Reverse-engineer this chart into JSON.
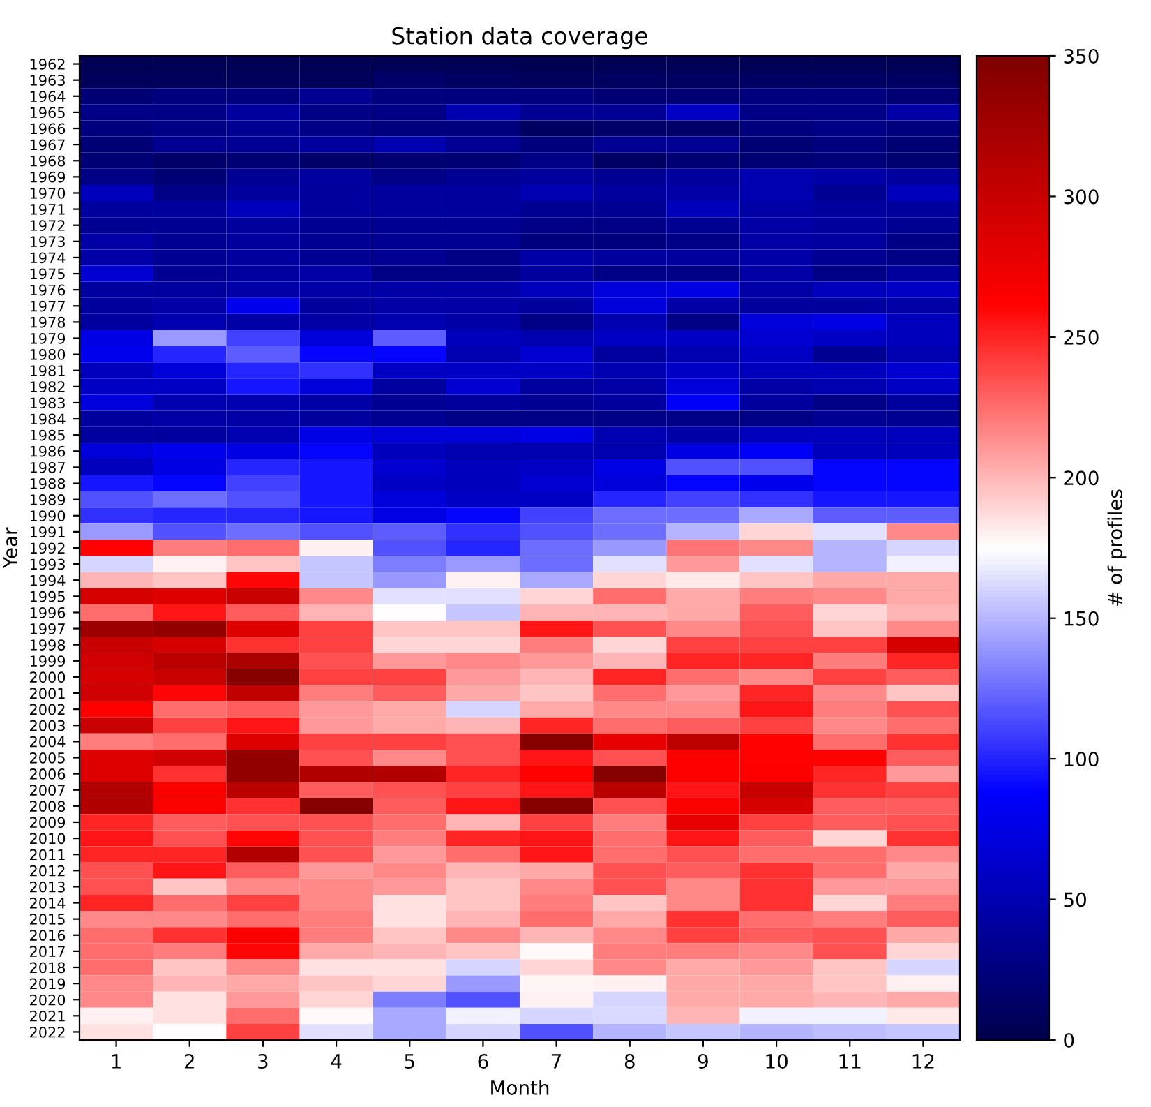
{
  "chart_data": {
    "type": "heatmap",
    "title": "Station data coverage",
    "xlabel": "Month",
    "ylabel": "Year",
    "clabel": "# of profiles",
    "categories": [
      "1",
      "2",
      "3",
      "4",
      "5",
      "6",
      "7",
      "8",
      "9",
      "10",
      "11",
      "12"
    ],
    "y_categories": [
      "1962",
      "1963",
      "1964",
      "1965",
      "1966",
      "1967",
      "1968",
      "1969",
      "1970",
      "1971",
      "1972",
      "1973",
      "1974",
      "1975",
      "1976",
      "1977",
      "1978",
      "1979",
      "1980",
      "1981",
      "1982",
      "1983",
      "1984",
      "1985",
      "1986",
      "1987",
      "1988",
      "1989",
      "1990",
      "1991",
      "1992",
      "1993",
      "1994",
      "1995",
      "1996",
      "1997",
      "1998",
      "1999",
      "2000",
      "2001",
      "2002",
      "2003",
      "2004",
      "2005",
      "2006",
      "2007",
      "2008",
      "2009",
      "2010",
      "2011",
      "2012",
      "2013",
      "2014",
      "2015",
      "2016",
      "2017",
      "2018",
      "2019",
      "2020",
      "2021",
      "2022"
    ],
    "cells": [
      [
        5,
        5,
        5,
        5,
        5,
        5,
        3,
        5,
        5,
        5,
        5,
        5
      ],
      [
        8,
        8,
        8,
        8,
        15,
        10,
        8,
        10,
        10,
        12,
        12,
        12
      ],
      [
        20,
        25,
        25,
        35,
        25,
        25,
        25,
        20,
        20,
        25,
        25,
        20
      ],
      [
        30,
        30,
        40,
        30,
        30,
        50,
        35,
        35,
        60,
        30,
        30,
        45
      ],
      [
        25,
        30,
        35,
        30,
        25,
        25,
        12,
        15,
        15,
        25,
        30,
        25
      ],
      [
        20,
        35,
        35,
        40,
        50,
        35,
        25,
        35,
        35,
        20,
        25,
        20
      ],
      [
        20,
        15,
        20,
        15,
        18,
        20,
        30,
        12,
        20,
        20,
        22,
        18
      ],
      [
        30,
        20,
        35,
        40,
        30,
        35,
        40,
        35,
        40,
        50,
        45,
        40
      ],
      [
        55,
        30,
        40,
        40,
        40,
        40,
        50,
        40,
        45,
        50,
        35,
        55
      ],
      [
        40,
        40,
        55,
        40,
        40,
        40,
        35,
        35,
        55,
        45,
        40,
        40
      ],
      [
        35,
        35,
        40,
        35,
        35,
        35,
        30,
        30,
        35,
        45,
        40,
        35
      ],
      [
        45,
        35,
        40,
        35,
        35,
        35,
        25,
        25,
        30,
        45,
        40,
        30
      ],
      [
        45,
        35,
        40,
        35,
        35,
        30,
        45,
        40,
        40,
        45,
        35,
        30
      ],
      [
        65,
        35,
        40,
        45,
        30,
        30,
        40,
        30,
        30,
        45,
        30,
        40
      ],
      [
        40,
        40,
        45,
        45,
        45,
        45,
        55,
        70,
        75,
        45,
        55,
        60
      ],
      [
        40,
        45,
        80,
        40,
        45,
        45,
        40,
        70,
        45,
        40,
        40,
        45
      ],
      [
        40,
        50,
        45,
        45,
        50,
        45,
        30,
        50,
        30,
        70,
        75,
        55
      ],
      [
        75,
        140,
        110,
        70,
        120,
        55,
        50,
        60,
        60,
        65,
        60,
        55
      ],
      [
        80,
        100,
        120,
        90,
        90,
        50,
        65,
        40,
        50,
        60,
        35,
        50
      ],
      [
        55,
        70,
        100,
        105,
        60,
        60,
        60,
        50,
        60,
        55,
        55,
        65
      ],
      [
        60,
        60,
        95,
        70,
        40,
        65,
        40,
        45,
        70,
        45,
        50,
        60
      ],
      [
        70,
        50,
        50,
        45,
        35,
        40,
        35,
        40,
        85,
        40,
        30,
        40
      ],
      [
        40,
        45,
        45,
        40,
        35,
        30,
        30,
        30,
        30,
        30,
        35,
        35
      ],
      [
        40,
        40,
        50,
        75,
        70,
        70,
        75,
        50,
        45,
        55,
        55,
        55
      ],
      [
        70,
        80,
        75,
        90,
        55,
        50,
        50,
        50,
        75,
        85,
        55,
        55
      ],
      [
        55,
        75,
        100,
        95,
        65,
        55,
        60,
        75,
        115,
        115,
        90,
        90
      ],
      [
        95,
        90,
        110,
        95,
        60,
        55,
        65,
        70,
        90,
        80,
        90,
        90
      ],
      [
        115,
        125,
        115,
        95,
        70,
        60,
        60,
        100,
        110,
        105,
        95,
        95
      ],
      [
        105,
        100,
        100,
        95,
        75,
        90,
        110,
        125,
        125,
        145,
        120,
        120
      ],
      [
        140,
        115,
        125,
        115,
        120,
        105,
        115,
        125,
        150,
        190,
        165,
        215
      ],
      [
        262,
        220,
        225,
        180,
        115,
        100,
        125,
        140,
        222,
        215,
        150,
        160
      ],
      [
        160,
        180,
        195,
        155,
        130,
        140,
        125,
        165,
        210,
        165,
        150,
        170
      ],
      [
        200,
        195,
        260,
        155,
        140,
        180,
        145,
        190,
        182,
        195,
        205,
        205
      ],
      [
        290,
        285,
        300,
        215,
        165,
        165,
        190,
        225,
        205,
        220,
        215,
        205
      ],
      [
        225,
        255,
        230,
        200,
        175,
        155,
        200,
        200,
        205,
        230,
        190,
        200
      ],
      [
        330,
        335,
        285,
        240,
        195,
        195,
        255,
        235,
        215,
        235,
        195,
        215
      ],
      [
        300,
        290,
        245,
        240,
        190,
        190,
        220,
        190,
        240,
        240,
        240,
        290
      ],
      [
        295,
        310,
        320,
        235,
        210,
        215,
        210,
        200,
        250,
        250,
        220,
        250
      ],
      [
        290,
        300,
        345,
        240,
        240,
        210,
        200,
        250,
        225,
        215,
        240,
        230
      ],
      [
        295,
        260,
        305,
        220,
        230,
        205,
        195,
        225,
        210,
        250,
        215,
        195
      ],
      [
        265,
        225,
        230,
        210,
        205,
        160,
        205,
        215,
        215,
        255,
        220,
        235
      ],
      [
        300,
        240,
        255,
        210,
        205,
        200,
        250,
        225,
        230,
        240,
        215,
        225
      ],
      [
        220,
        225,
        285,
        240,
        240,
        235,
        345,
        280,
        310,
        262,
        225,
        245
      ],
      [
        285,
        295,
        335,
        235,
        215,
        235,
        255,
        235,
        265,
        262,
        262,
        230
      ],
      [
        285,
        245,
        335,
        315,
        315,
        250,
        262,
        345,
        265,
        265,
        250,
        210
      ],
      [
        315,
        265,
        310,
        230,
        235,
        240,
        255,
        310,
        255,
        300,
        245,
        240
      ],
      [
        315,
        265,
        245,
        345,
        230,
        255,
        345,
        235,
        265,
        290,
        230,
        230
      ],
      [
        250,
        230,
        235,
        235,
        225,
        200,
        240,
        220,
        280,
        240,
        230,
        235
      ],
      [
        255,
        235,
        260,
        235,
        220,
        250,
        255,
        225,
        255,
        230,
        190,
        245
      ],
      [
        250,
        250,
        315,
        235,
        210,
        225,
        255,
        225,
        235,
        225,
        225,
        215
      ],
      [
        235,
        255,
        230,
        210,
        215,
        200,
        205,
        235,
        230,
        245,
        225,
        205
      ],
      [
        235,
        195,
        215,
        215,
        210,
        195,
        215,
        235,
        215,
        245,
        210,
        210
      ],
      [
        250,
        225,
        240,
        215,
        185,
        195,
        220,
        195,
        215,
        245,
        190,
        220
      ],
      [
        215,
        215,
        225,
        220,
        185,
        200,
        225,
        205,
        245,
        225,
        220,
        230
      ],
      [
        225,
        245,
        265,
        220,
        195,
        215,
        200,
        215,
        240,
        230,
        235,
        205
      ],
      [
        225,
        220,
        260,
        205,
        200,
        195,
        177,
        220,
        220,
        215,
        235,
        190
      ],
      [
        225,
        195,
        215,
        185,
        185,
        160,
        190,
        215,
        205,
        210,
        195,
        160
      ],
      [
        215,
        200,
        205,
        195,
        190,
        140,
        178,
        180,
        205,
        205,
        195,
        180
      ],
      [
        215,
        185,
        210,
        190,
        130,
        115,
        180,
        160,
        205,
        205,
        200,
        205
      ],
      [
        180,
        185,
        225,
        177,
        145,
        170,
        160,
        162,
        200,
        170,
        170,
        182
      ],
      [
        185,
        176,
        240,
        165,
        145,
        160,
        115,
        150,
        155,
        150,
        152,
        155
      ]
    ],
    "clim": [
      0,
      350
    ],
    "cticks": [
      0,
      50,
      100,
      150,
      200,
      250,
      300,
      350
    ],
    "grid": false
  }
}
